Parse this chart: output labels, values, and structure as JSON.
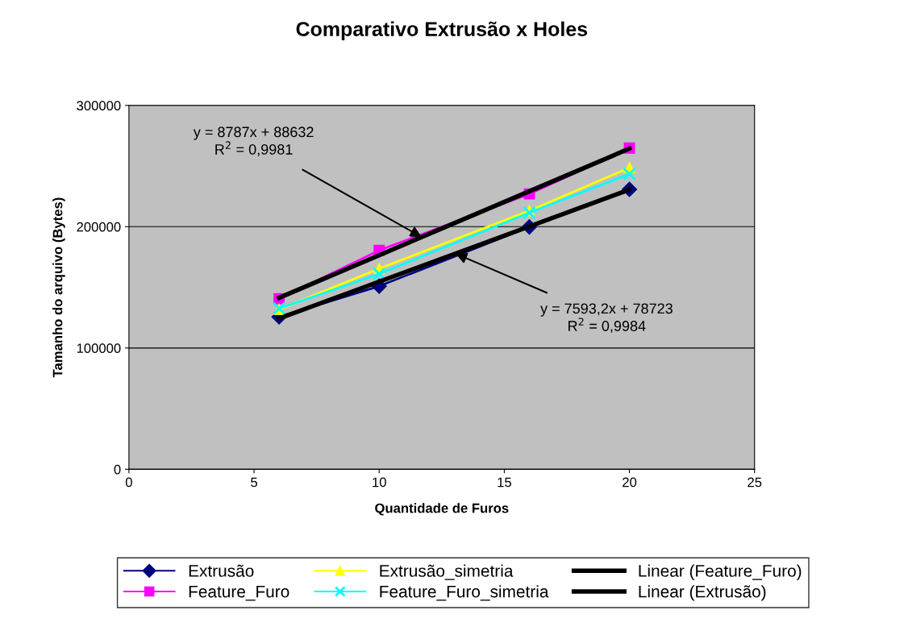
{
  "chart_data": {
    "type": "line",
    "title": "Comparativo Extrusão x Holes",
    "xlabel": "Quantidade de Furos",
    "ylabel": "Tamanho do arquivo (Bytes)",
    "x": [
      6,
      10,
      16,
      20
    ],
    "series": [
      {
        "name": "Extrusão",
        "color": "#000080",
        "marker": "diamond",
        "values": [
          125700,
          151000,
          199800,
          230800
        ]
      },
      {
        "name": "Feature_Furo",
        "color": "#ff00ff",
        "marker": "square",
        "values": [
          140600,
          180500,
          227000,
          264800
        ]
      },
      {
        "name": "Extrusão_simetria",
        "color": "#ffff00",
        "marker": "triangle",
        "values": [
          131700,
          165400,
          213100,
          248600
        ]
      },
      {
        "name": "Feature_Furo_simetria",
        "color": "#00ffff",
        "marker": "cross",
        "values": [
          132600,
          161000,
          211500,
          243500
        ]
      },
      {
        "name": "Linear (Feature_Furo)",
        "color": "#000000",
        "marker": "none",
        "values": [
          141400,
          176500,
          229200,
          264400
        ]
      },
      {
        "name": "Linear (Extrusão)",
        "color": "#000000",
        "marker": "none",
        "values": [
          124300,
          154700,
          200200,
          230600
        ]
      }
    ],
    "annotations": [
      {
        "text": "y = 8787x + 88632\nR$^{2}$ = 0,9981",
        "x": 11.7,
        "y": 191400
      },
      {
        "text": "y = 7593,2x + 78723\nR$^{2}$ = 0,9984",
        "x": 13.05,
        "y": 177800
      }
    ],
    "xlim": [
      0,
      25
    ],
    "xticks": [
      0,
      5,
      10,
      15,
      20,
      25
    ],
    "ylim": [
      0,
      300000
    ],
    "yticks": [
      0,
      100000,
      200000,
      300000
    ],
    "grid": "y",
    "legend": "bottom"
  }
}
